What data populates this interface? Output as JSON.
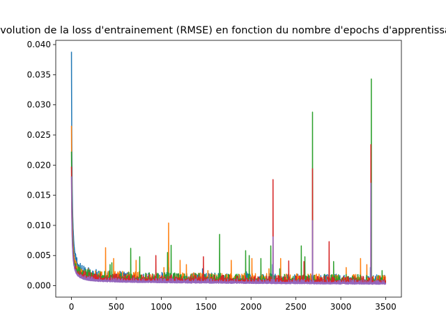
{
  "chart_data": {
    "type": "line",
    "title": "Evolution de la loss d'entrainement (RMSE) en fonction du nombre d'epochs d'apprentissage",
    "xlabel": "",
    "ylabel": "",
    "xlim": [
      -175,
      3675
    ],
    "ylim": [
      -0.0019,
      0.0407
    ],
    "x_ticks": [
      0,
      500,
      1000,
      1500,
      2000,
      2500,
      3000,
      3500
    ],
    "y_ticks": [
      0.0,
      0.005,
      0.01,
      0.015,
      0.02,
      0.025,
      0.03,
      0.035,
      0.04
    ],
    "x_tick_labels": [
      "0",
      "500",
      "1000",
      "1500",
      "2000",
      "2500",
      "3000",
      "3500"
    ],
    "y_tick_labels": [
      "0.000",
      "0.005",
      "0.010",
      "0.015",
      "0.020",
      "0.025",
      "0.030",
      "0.035",
      "0.040"
    ],
    "grid": false,
    "legend": "none",
    "epochs": 3500,
    "series": [
      {
        "color": "#1f77b4",
        "start": 0.0388,
        "floor": 0.0007,
        "end": 0.0003,
        "noise": 0.0006,
        "spikes": [
          [
            60,
            0.0045
          ],
          [
            1085,
            0.003
          ],
          [
            1460,
            0.0028
          ],
          [
            1950,
            0.0023
          ],
          [
            2240,
            0.0035
          ],
          [
            3330,
            0.003
          ],
          [
            3400,
            0.0018
          ]
        ]
      },
      {
        "color": "#ff7f0e",
        "start": 0.0265,
        "floor": 0.0008,
        "end": 0.0003,
        "noise": 0.0006,
        "spikes": [
          [
            380,
            0.0063
          ],
          [
            470,
            0.0045
          ],
          [
            720,
            0.0042
          ],
          [
            1030,
            0.003
          ],
          [
            1082,
            0.0104
          ],
          [
            1210,
            0.0042
          ],
          [
            1280,
            0.0035
          ],
          [
            1520,
            0.0025
          ],
          [
            1780,
            0.0042
          ],
          [
            2010,
            0.0045
          ],
          [
            2200,
            0.0028
          ],
          [
            2330,
            0.0045
          ],
          [
            2560,
            0.0028
          ],
          [
            2870,
            0.004
          ],
          [
            3060,
            0.003
          ],
          [
            3220,
            0.0045
          ],
          [
            3290,
            0.0035
          ]
        ]
      },
      {
        "color": "#2ca02c",
        "start": 0.0222,
        "floor": 0.0007,
        "end": 0.0003,
        "noise": 0.0006,
        "spikes": [
          [
            430,
            0.0035
          ],
          [
            450,
            0.0038
          ],
          [
            660,
            0.0062
          ],
          [
            760,
            0.0048
          ],
          [
            1070,
            0.0055
          ],
          [
            1110,
            0.0067
          ],
          [
            1650,
            0.0085
          ],
          [
            1940,
            0.0058
          ],
          [
            1980,
            0.005
          ],
          [
            2110,
            0.0045
          ],
          [
            2220,
            0.0066
          ],
          [
            2320,
            0.0028
          ],
          [
            2560,
            0.0066
          ],
          [
            2600,
            0.0048
          ],
          [
            2685,
            0.0288
          ],
          [
            2920,
            0.004
          ],
          [
            3340,
            0.0343
          ],
          [
            3460,
            0.0025
          ]
        ]
      },
      {
        "color": "#d62728",
        "start": 0.0197,
        "floor": 0.0006,
        "end": 0.0003,
        "noise": 0.0005,
        "spikes": [
          [
            940,
            0.005
          ],
          [
            1470,
            0.0048
          ],
          [
            2245,
            0.0176
          ],
          [
            2420,
            0.0041
          ],
          [
            2590,
            0.004
          ],
          [
            2685,
            0.0194
          ],
          [
            2870,
            0.0073
          ],
          [
            3335,
            0.0234
          ]
        ]
      },
      {
        "color": "#9467bd",
        "start": 0.0181,
        "floor": 0.0005,
        "end": 0.0002,
        "noise": 0.0003,
        "spikes": [
          [
            2245,
            0.0081
          ],
          [
            2685,
            0.0108
          ],
          [
            3335,
            0.017
          ]
        ]
      }
    ]
  }
}
